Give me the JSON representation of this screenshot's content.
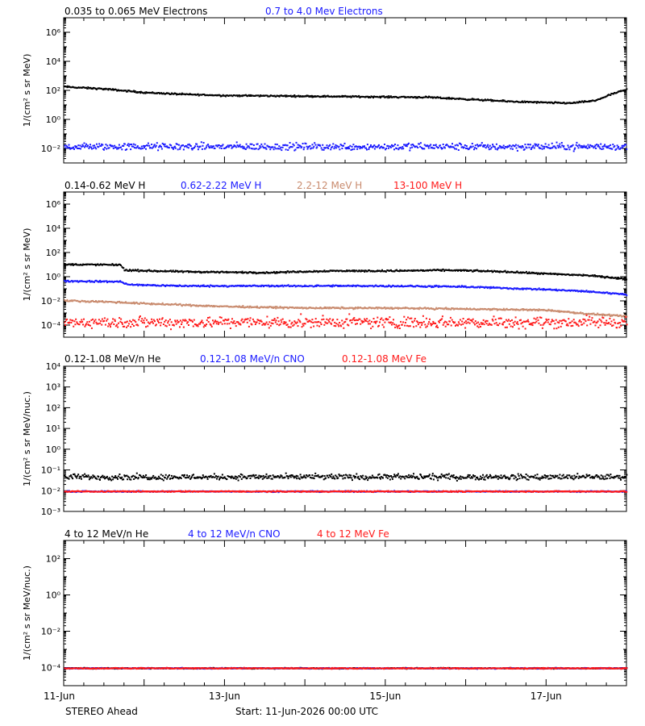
{
  "footer": {
    "spacecraft": "STEREO Ahead",
    "start": "Start: 11-Jun-2026 00:00 UTC"
  },
  "colors": {
    "black": "#000000",
    "blue": "#1a1aff",
    "tan": "#c98b6e",
    "red": "#ff1a1a"
  },
  "x_axis": {
    "range_days": [
      0,
      7
    ],
    "tick_labels": [
      {
        "day": 0,
        "label": "11-Jun"
      },
      {
        "day": 2,
        "label": "13-Jun"
      },
      {
        "day": 4,
        "label": "15-Jun"
      },
      {
        "day": 6,
        "label": "17-Jun"
      }
    ]
  },
  "chart_data": [
    {
      "type": "scatter",
      "ylabel": "1/(cm² s sr MeV)",
      "yscale": "log",
      "ylim_exp": [
        -3,
        7
      ],
      "ytick_exps": [
        -2,
        0,
        2,
        4,
        6
      ],
      "legend": [
        "0.035 to 0.065 MeV Electrons",
        "0.7 to 4.0 Mev Electrons"
      ],
      "series": [
        {
          "name": "0.035 to 0.065 MeV Electrons",
          "color": "black",
          "trend": [
            [
              0,
              200
            ],
            [
              0.5,
              140
            ],
            [
              1,
              80
            ],
            [
              1.5,
              60
            ],
            [
              2,
              50
            ],
            [
              3,
              45
            ],
            [
              4,
              40
            ],
            [
              4.5,
              38
            ],
            [
              5,
              28
            ],
            [
              5.5,
              20
            ],
            [
              6,
              16
            ],
            [
              6.3,
              15
            ],
            [
              6.6,
              22
            ],
            [
              6.8,
              60
            ],
            [
              7,
              130
            ]
          ],
          "scatter_dex": 0.04
        },
        {
          "name": "0.7 to 4.0 Mev Electrons",
          "color": "blue",
          "trend": [
            [
              0,
              0.015
            ],
            [
              7,
              0.015
            ]
          ],
          "scatter_dex": 0.18
        }
      ]
    },
    {
      "type": "scatter",
      "ylabel": "1/(cm² s sr MeV)",
      "yscale": "log",
      "ylim_exp": [
        -5,
        7
      ],
      "ytick_exps": [
        -4,
        -2,
        0,
        2,
        4,
        6
      ],
      "legend": [
        "0.14-0.62 MeV H",
        "0.62-2.22 MeV H",
        "2.2-12 MeV H",
        "13-100 MeV H"
      ],
      "series": [
        {
          "name": "0.14-0.62 MeV H",
          "color": "black",
          "trend": [
            [
              0,
              12
            ],
            [
              0.7,
              11
            ],
            [
              0.75,
              4
            ],
            [
              1.5,
              3
            ],
            [
              2.5,
              2.5
            ],
            [
              3.3,
              3.5
            ],
            [
              4,
              3.5
            ],
            [
              4.8,
              4
            ],
            [
              5.5,
              3
            ],
            [
              6,
              2
            ],
            [
              6.5,
              1.5
            ],
            [
              6.8,
              1
            ],
            [
              7,
              0.7
            ]
          ],
          "scatter_dex": 0.05
        },
        {
          "name": "0.62-2.22 MeV H",
          "color": "blue",
          "trend": [
            [
              0,
              0.5
            ],
            [
              0.7,
              0.45
            ],
            [
              0.8,
              0.25
            ],
            [
              1.5,
              0.2
            ],
            [
              3,
              0.2
            ],
            [
              4,
              0.2
            ],
            [
              5,
              0.17
            ],
            [
              6,
              0.1
            ],
            [
              6.5,
              0.07
            ],
            [
              7,
              0.04
            ]
          ],
          "scatter_dex": 0.05
        },
        {
          "name": "2.2-12 MeV H",
          "color": "tan",
          "trend": [
            [
              0,
              0.012
            ],
            [
              0.5,
              0.01
            ],
            [
              1,
              0.007
            ],
            [
              2,
              0.004
            ],
            [
              3,
              0.003
            ],
            [
              4,
              0.003
            ],
            [
              5,
              0.0025
            ],
            [
              6,
              0.002
            ],
            [
              6.5,
              0.001
            ],
            [
              7,
              0.0006
            ]
          ],
          "scatter_dex": 0.05
        },
        {
          "name": "13-100 MeV H",
          "color": "red",
          "trend": [
            [
              0,
              0.0002
            ],
            [
              7,
              0.0002
            ]
          ],
          "scatter_dex": 0.35
        }
      ]
    },
    {
      "type": "scatter",
      "ylabel": "1/(cm² s sr MeV/nuc.)",
      "yscale": "log",
      "ylim_exp": [
        -3,
        4
      ],
      "ytick_exps": [
        -3,
        -2,
        -1,
        0,
        1,
        2,
        3,
        4
      ],
      "tick_format": "power",
      "legend": [
        "0.12-1.08 MeV/n He",
        "0.12-1.08 MeV/n CNO",
        "0.12-1.08 MeV Fe"
      ],
      "series": [
        {
          "name": "0.12-1.08 MeV/n He",
          "color": "black",
          "trend": [
            [
              0,
              0.05
            ],
            [
              7,
              0.05
            ]
          ],
          "scatter_dex": 0.1
        },
        {
          "name": "0.12-1.08 MeV/n CNO",
          "color": "blue",
          "trend": [
            [
              0,
              0.01
            ],
            [
              7,
              0.01
            ]
          ],
          "scatter_dex": 0.02
        },
        {
          "name": "0.12-1.08 MeV Fe",
          "color": "red",
          "trend": [
            [
              0,
              0.01
            ],
            [
              7,
              0.01
            ]
          ],
          "scatter_dex": 0.02
        }
      ]
    },
    {
      "type": "scatter",
      "ylabel": "1/(cm² s sr MeV/nuc.)",
      "yscale": "log",
      "ylim_exp": [
        -5,
        3
      ],
      "ytick_exps": [
        -4,
        -2,
        0,
        2
      ],
      "legend": [
        "4 to 12 MeV/n He",
        "4 to 12 MeV/n CNO",
        "4 to 12 MeV Fe"
      ],
      "series": [
        {
          "name": "4 to 12 MeV/n He",
          "color": "black",
          "trend": [
            [
              0,
              0.0001
            ],
            [
              7,
              0.0001
            ]
          ],
          "scatter_dex": 0.02
        },
        {
          "name": "4 to 12 MeV/n CNO",
          "color": "blue",
          "trend": [
            [
              0,
              0.0001
            ],
            [
              7,
              0.0001
            ]
          ],
          "scatter_dex": 0.02
        },
        {
          "name": "4 to 12 MeV Fe",
          "color": "red",
          "trend": [
            [
              0,
              0.0001
            ],
            [
              7,
              0.0001
            ]
          ],
          "scatter_dex": 0.02
        }
      ]
    }
  ]
}
